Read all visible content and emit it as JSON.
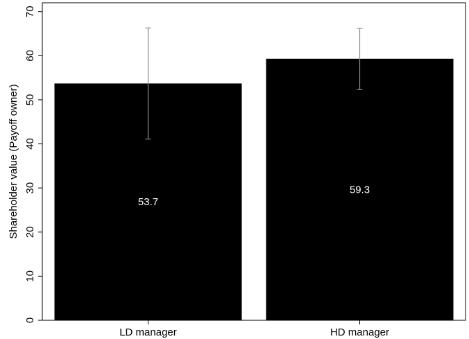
{
  "chart_data": {
    "type": "bar",
    "categories": [
      "LD manager",
      "HD manager"
    ],
    "values": [
      53.7,
      59.3
    ],
    "data_labels": [
      "53.7",
      "59.3"
    ],
    "error_bars": [
      {
        "low": 41.1,
        "high": 66.3
      },
      {
        "low": 52.3,
        "high": 66.2
      }
    ],
    "title": "",
    "xlabel": "",
    "ylabel": "Shareholder value (Payoff owner)",
    "ylim": [
      0,
      72
    ],
    "yticks": [
      0,
      10,
      20,
      30,
      40,
      50,
      60,
      70
    ],
    "grid": false,
    "legend": "none",
    "colors": {
      "bar": "#000000",
      "error_bar": "#8c8c8c",
      "data_label": "#ffffff",
      "axis": "#000000"
    }
  }
}
